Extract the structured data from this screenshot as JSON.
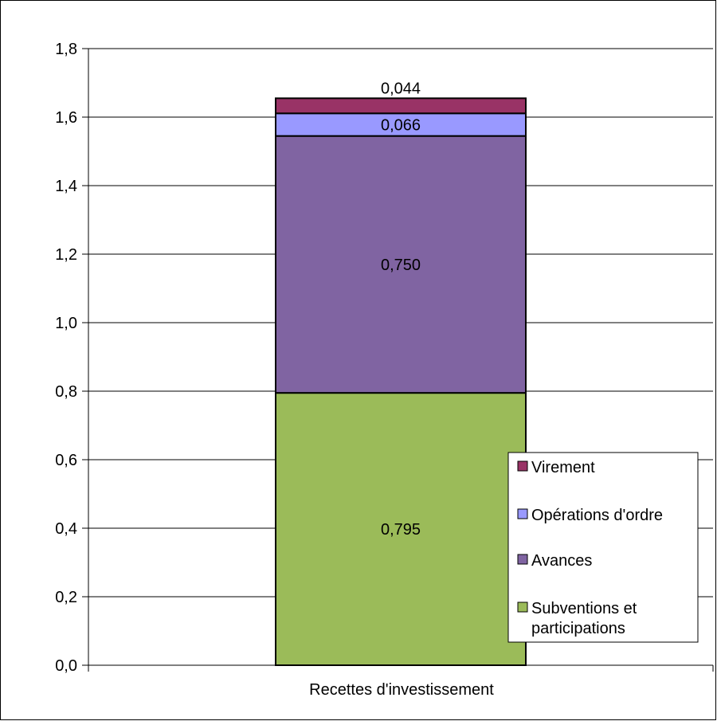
{
  "chart_data": {
    "type": "bar",
    "stacked": true,
    "categories": [
      "Recettes d'investissement"
    ],
    "ylim": [
      0,
      1.8
    ],
    "yticks": [
      "0,0",
      "0,2",
      "0,4",
      "0,6",
      "0,8",
      "1,0",
      "1,2",
      "1,4",
      "1,6",
      "1,8"
    ],
    "grid": true,
    "legend_position": "bottom-right",
    "series": [
      {
        "name": "Subventions et participations",
        "values": [
          0.795
        ],
        "label": "0,795",
        "color": "#9BBB59"
      },
      {
        "name": "Avances",
        "values": [
          0.75
        ],
        "label": "0,750",
        "color": "#8064A2"
      },
      {
        "name": "Opérations d'ordre",
        "values": [
          0.066
        ],
        "label": "0,066",
        "color": "#9999FF"
      },
      {
        "name": "Virement",
        "values": [
          0.044
        ],
        "label": "0,044",
        "color": "#993366"
      }
    ],
    "legend": [
      {
        "text": "Virement",
        "color": "#993366"
      },
      {
        "text": "Opérations d'ordre",
        "color": "#9999FF"
      },
      {
        "text": "Avances",
        "color": "#8064A2"
      },
      {
        "text": "Subventions et participations",
        "color": "#9BBB59"
      }
    ]
  }
}
